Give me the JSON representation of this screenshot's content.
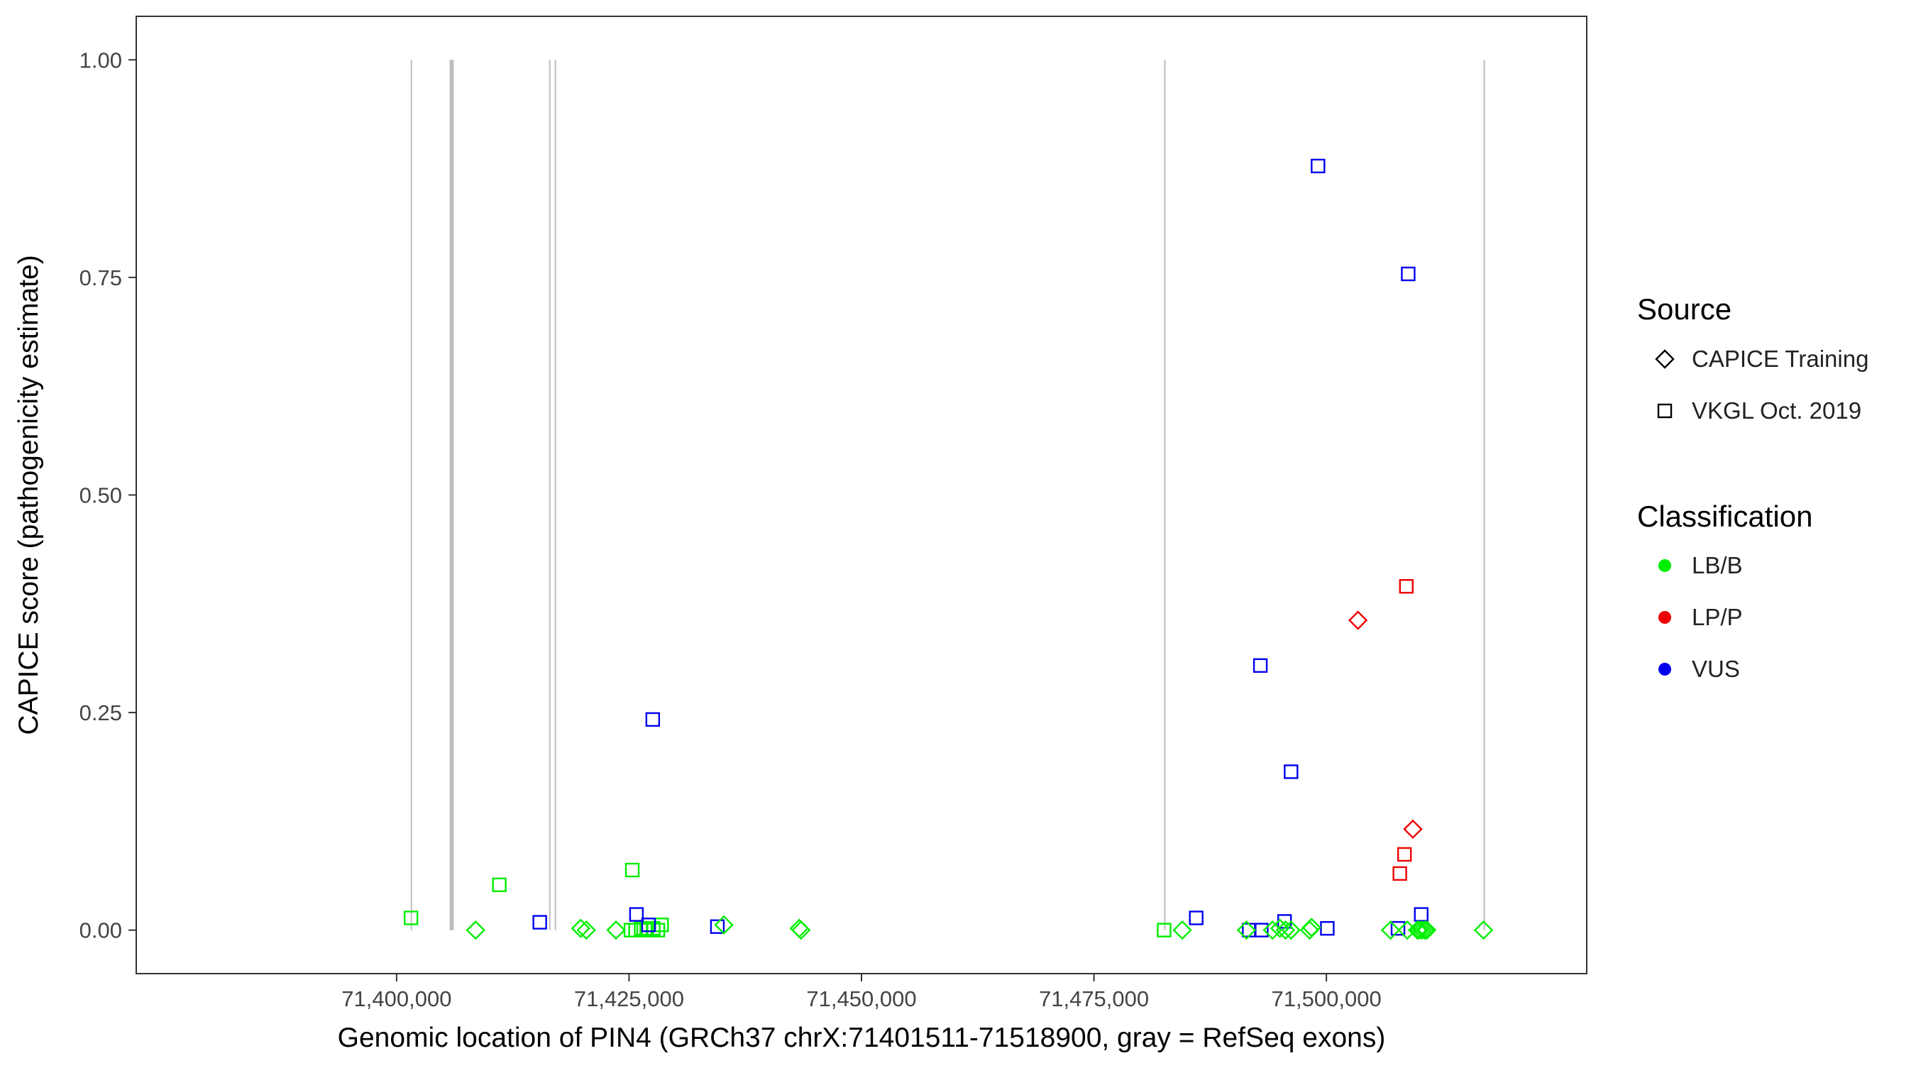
{
  "chart_data": {
    "type": "scatter",
    "title": "",
    "xlabel": "Genomic location of PIN4 (GRCh37 chrX:71401511-71518900, gray = RefSeq exons)",
    "ylabel": "CAPICE score (pathogenicity estimate)",
    "xlim": [
      71372000,
      71528000
    ],
    "ylim": [
      -0.05,
      1.05
    ],
    "x_ticks": [
      71400000,
      71425000,
      71450000,
      71475000,
      71500000
    ],
    "x_tick_labels": [
      "71,400,000",
      "71,425,000",
      "71,450,000",
      "71,475,000",
      "71,500,000"
    ],
    "y_ticks": [
      0,
      0.25,
      0.5,
      0.75,
      1.0
    ],
    "y_tick_labels": [
      "0.00",
      "0.25",
      "0.50",
      "0.75",
      "1.00"
    ],
    "grid": false,
    "legend_position": "right",
    "colors": {
      "LB/B": "#00ee00",
      "LP/P": "#ee0000",
      "VUS": "#0000ee",
      "exon": "#bebebe"
    },
    "legend": {
      "source_title": "Source",
      "source_entries": [
        {
          "label": "CAPICE Training",
          "shape": "diamond"
        },
        {
          "label": "VKGL Oct. 2019",
          "shape": "square"
        }
      ],
      "class_title": "Classification",
      "class_entries": [
        {
          "label": "LB/B",
          "color": "#00ee00"
        },
        {
          "label": "LP/P",
          "color": "#ee0000"
        },
        {
          "label": "VUS",
          "color": "#0000ee"
        }
      ]
    },
    "exons": [
      {
        "start": 71401511,
        "end": 71401650
      },
      {
        "start": 71405700,
        "end": 71406150
      },
      {
        "start": 71416400,
        "end": 71416550
      },
      {
        "start": 71417000,
        "end": 71417150
      },
      {
        "start": 71482550,
        "end": 71482700
      },
      {
        "start": 71516900,
        "end": 71517050
      }
    ],
    "points": [
      {
        "x": 71401550,
        "y": 0.014,
        "source": "VKGL Oct. 2019",
        "class": "LB/B"
      },
      {
        "x": 71411050,
        "y": 0.052,
        "source": "VKGL Oct. 2019",
        "class": "LB/B"
      },
      {
        "x": 71425350,
        "y": 0.069,
        "source": "VKGL Oct. 2019",
        "class": "LB/B"
      },
      {
        "x": 71425200,
        "y": 0.0,
        "source": "VKGL Oct. 2019",
        "class": "LB/B"
      },
      {
        "x": 71425700,
        "y": 0.0,
        "source": "VKGL Oct. 2019",
        "class": "LB/B"
      },
      {
        "x": 71426300,
        "y": 0.002,
        "source": "VKGL Oct. 2019",
        "class": "LB/B"
      },
      {
        "x": 71426900,
        "y": 0.0,
        "source": "VKGL Oct. 2019",
        "class": "LB/B"
      },
      {
        "x": 71427600,
        "y": 0.002,
        "source": "VKGL Oct. 2019",
        "class": "LB/B"
      },
      {
        "x": 71428100,
        "y": 0.0,
        "source": "VKGL Oct. 2019",
        "class": "LB/B"
      },
      {
        "x": 71428500,
        "y": 0.006,
        "source": "VKGL Oct. 2019",
        "class": "LB/B"
      },
      {
        "x": 71482550,
        "y": 0.0,
        "source": "VKGL Oct. 2019",
        "class": "LB/B"
      },
      {
        "x": 71415400,
        "y": 0.009,
        "source": "VKGL Oct. 2019",
        "class": "VUS"
      },
      {
        "x": 71425800,
        "y": 0.018,
        "source": "VKGL Oct. 2019",
        "class": "VUS"
      },
      {
        "x": 71427100,
        "y": 0.006,
        "source": "VKGL Oct. 2019",
        "class": "VUS"
      },
      {
        "x": 71427550,
        "y": 0.242,
        "source": "VKGL Oct. 2019",
        "class": "VUS"
      },
      {
        "x": 71434500,
        "y": 0.004,
        "source": "VKGL Oct. 2019",
        "class": "VUS"
      },
      {
        "x": 71486000,
        "y": 0.014,
        "source": "VKGL Oct. 2019",
        "class": "VUS"
      },
      {
        "x": 71491700,
        "y": 0.0,
        "source": "VKGL Oct. 2019",
        "class": "VUS"
      },
      {
        "x": 71492900,
        "y": 0.304,
        "source": "VKGL Oct. 2019",
        "class": "VUS"
      },
      {
        "x": 71493000,
        "y": 0.0,
        "source": "VKGL Oct. 2019",
        "class": "VUS"
      },
      {
        "x": 71495500,
        "y": 0.01,
        "source": "VKGL Oct. 2019",
        "class": "VUS"
      },
      {
        "x": 71496200,
        "y": 0.182,
        "source": "VKGL Oct. 2019",
        "class": "VUS"
      },
      {
        "x": 71499100,
        "y": 0.878,
        "source": "VKGL Oct. 2019",
        "class": "VUS"
      },
      {
        "x": 71500100,
        "y": 0.002,
        "source": "VKGL Oct. 2019",
        "class": "VUS"
      },
      {
        "x": 71507700,
        "y": 0.002,
        "source": "VKGL Oct. 2019",
        "class": "VUS"
      },
      {
        "x": 71508800,
        "y": 0.754,
        "source": "VKGL Oct. 2019",
        "class": "VUS"
      },
      {
        "x": 71510200,
        "y": 0.018,
        "source": "VKGL Oct. 2019",
        "class": "VUS"
      },
      {
        "x": 71507900,
        "y": 0.065,
        "source": "VKGL Oct. 2019",
        "class": "LP/P"
      },
      {
        "x": 71508400,
        "y": 0.087,
        "source": "VKGL Oct. 2019",
        "class": "LP/P"
      },
      {
        "x": 71508600,
        "y": 0.395,
        "source": "VKGL Oct. 2019",
        "class": "LP/P"
      },
      {
        "x": 71503400,
        "y": 0.356,
        "source": "CAPICE Training",
        "class": "LP/P"
      },
      {
        "x": 71509300,
        "y": 0.116,
        "source": "CAPICE Training",
        "class": "LP/P"
      },
      {
        "x": 71408500,
        "y": 0.0,
        "source": "CAPICE Training",
        "class": "LB/B"
      },
      {
        "x": 71419800,
        "y": 0.002,
        "source": "CAPICE Training",
        "class": "LB/B"
      },
      {
        "x": 71420400,
        "y": 0.0,
        "source": "CAPICE Training",
        "class": "LB/B"
      },
      {
        "x": 71423600,
        "y": 0.0,
        "source": "CAPICE Training",
        "class": "LB/B"
      },
      {
        "x": 71435200,
        "y": 0.006,
        "source": "CAPICE Training",
        "class": "LB/B"
      },
      {
        "x": 71443300,
        "y": 0.002,
        "source": "CAPICE Training",
        "class": "LB/B"
      },
      {
        "x": 71443500,
        "y": 0.0,
        "source": "CAPICE Training",
        "class": "LB/B"
      },
      {
        "x": 71484500,
        "y": 0.0,
        "source": "CAPICE Training",
        "class": "LB/B"
      },
      {
        "x": 71491400,
        "y": 0.0,
        "source": "CAPICE Training",
        "class": "LB/B"
      },
      {
        "x": 71494200,
        "y": 0.0,
        "source": "CAPICE Training",
        "class": "LB/B"
      },
      {
        "x": 71495000,
        "y": 0.002,
        "source": "CAPICE Training",
        "class": "LB/B"
      },
      {
        "x": 71495600,
        "y": 0.0,
        "source": "CAPICE Training",
        "class": "LB/B"
      },
      {
        "x": 71496200,
        "y": 0.0,
        "source": "CAPICE Training",
        "class": "LB/B"
      },
      {
        "x": 71498200,
        "y": 0.0,
        "source": "CAPICE Training",
        "class": "LB/B"
      },
      {
        "x": 71498400,
        "y": 0.003,
        "source": "CAPICE Training",
        "class": "LB/B"
      },
      {
        "x": 71506900,
        "y": 0.0,
        "source": "CAPICE Training",
        "class": "LB/B"
      },
      {
        "x": 71508700,
        "y": 0.0,
        "source": "CAPICE Training",
        "class": "LB/B"
      },
      {
        "x": 71509800,
        "y": 0.0,
        "source": "CAPICE Training",
        "class": "LB/B"
      },
      {
        "x": 71510000,
        "y": 0.0,
        "source": "CAPICE Training",
        "class": "LB/B"
      },
      {
        "x": 71510300,
        "y": 0.0,
        "source": "CAPICE Training",
        "class": "LB/B"
      },
      {
        "x": 71510600,
        "y": 0.0,
        "source": "CAPICE Training",
        "class": "LB/B"
      },
      {
        "x": 71510800,
        "y": 0.0,
        "source": "CAPICE Training",
        "class": "LB/B"
      },
      {
        "x": 71516900,
        "y": 0.0,
        "source": "CAPICE Training",
        "class": "LB/B"
      }
    ]
  }
}
